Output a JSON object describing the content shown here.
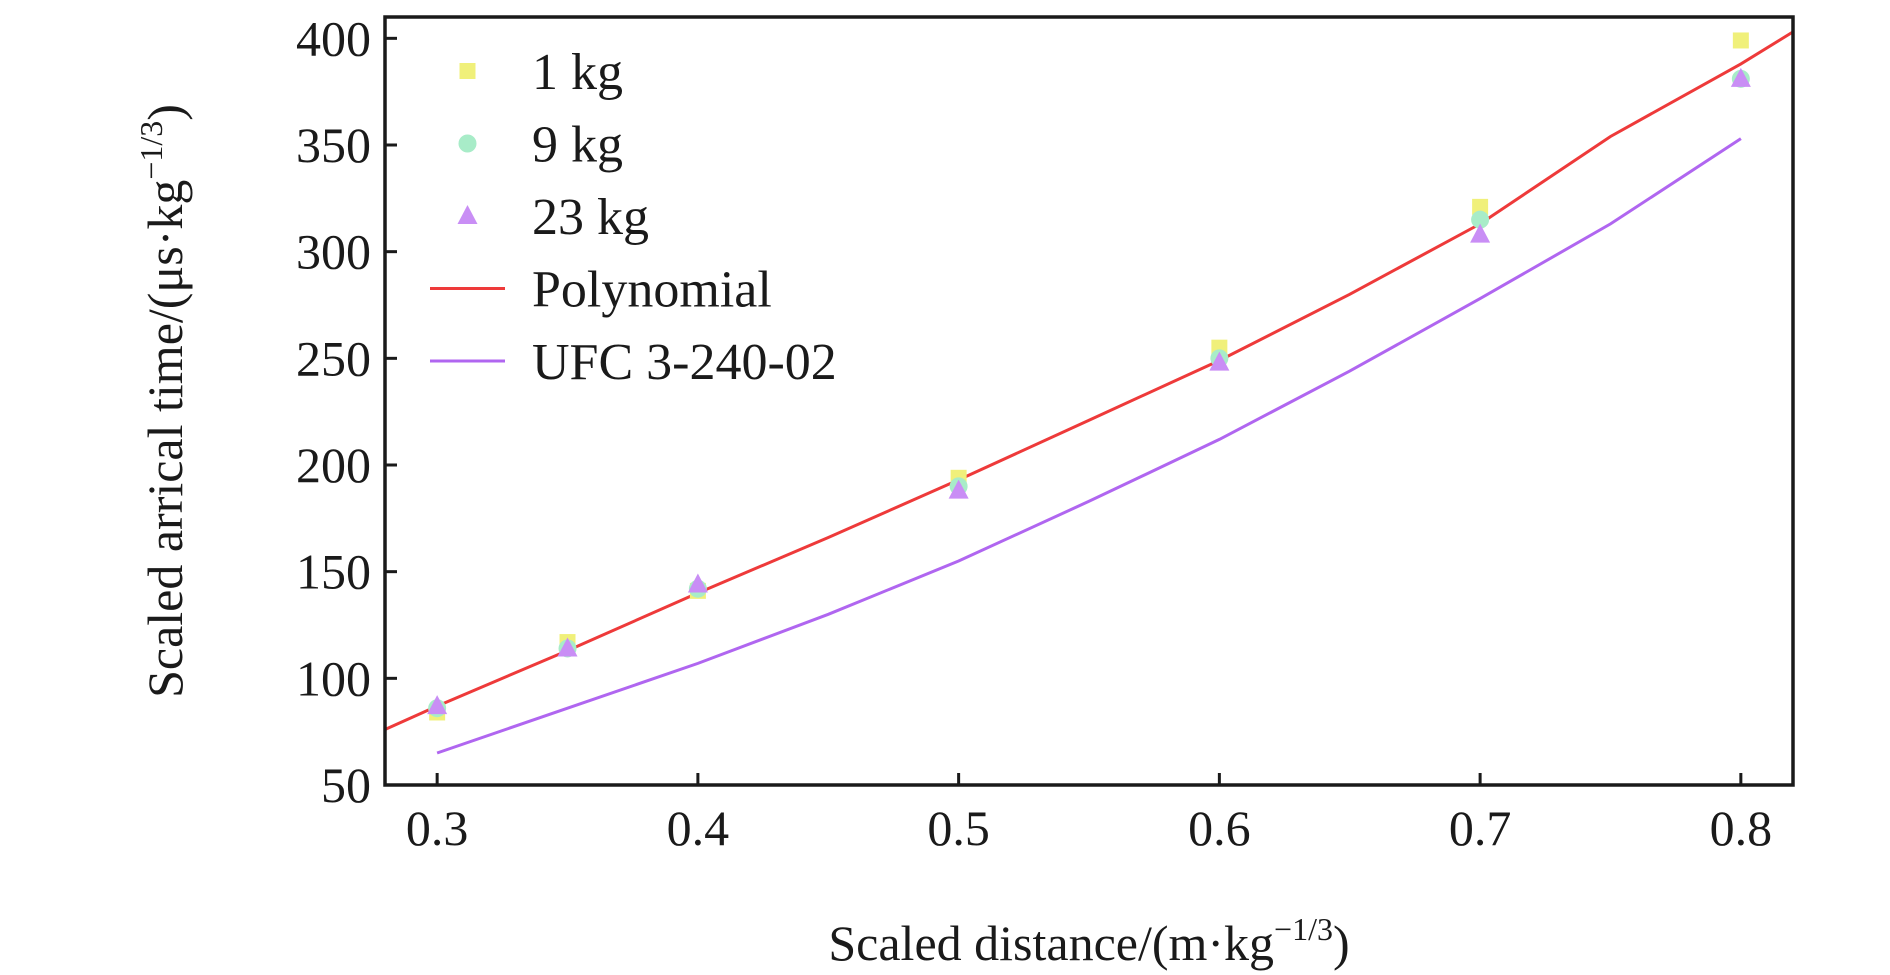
{
  "chart_data": {
    "type": "scatter",
    "title": "",
    "xlabel_main": "Scaled distance/(m·kg",
    "xlabel_sup": "−1/3",
    "xlabel_end": ")",
    "ylabel_main": "Scaled arrical time/(μs·kg",
    "ylabel_sup": "−1/3",
    "ylabel_end": ")",
    "xlim": [
      0.28,
      0.82
    ],
    "ylim": [
      50,
      410
    ],
    "x_ticks": [
      0.3,
      0.4,
      0.5,
      0.6,
      0.7,
      0.8
    ],
    "x_tick_labels": [
      "0.3",
      "0.4",
      "0.5",
      "0.6",
      "0.7",
      "0.8"
    ],
    "y_ticks": [
      50,
      100,
      150,
      200,
      250,
      300,
      350,
      400
    ],
    "y_tick_labels": [
      "50",
      "100",
      "150",
      "200",
      "250",
      "300",
      "350",
      "400"
    ],
    "legend_position": "top-left",
    "series": [
      {
        "name": "1 kg",
        "kind": "points",
        "marker": "square",
        "color": "#f0f07a",
        "x": [
          0.3,
          0.35,
          0.4,
          0.5,
          0.6,
          0.7,
          0.8
        ],
        "y": [
          84,
          117,
          141,
          194,
          255,
          321,
          399
        ]
      },
      {
        "name": "9 kg",
        "kind": "points",
        "marker": "circle",
        "color": "#a8ecc8",
        "x": [
          0.3,
          0.35,
          0.4,
          0.5,
          0.6,
          0.7,
          0.8
        ],
        "y": [
          86,
          114,
          142,
          190,
          250,
          315,
          381
        ]
      },
      {
        "name": "23 kg",
        "kind": "points",
        "marker": "triangle",
        "color": "#c98ef5",
        "x": [
          0.3,
          0.35,
          0.4,
          0.5,
          0.6,
          0.7,
          0.8
        ],
        "y": [
          87,
          114,
          144,
          188,
          248,
          308,
          381
        ]
      },
      {
        "name": "Polynomial",
        "kind": "line",
        "color": "#ee3a3a",
        "x": [
          0.28,
          0.3,
          0.35,
          0.4,
          0.45,
          0.5,
          0.55,
          0.6,
          0.65,
          0.7,
          0.75,
          0.8,
          0.82
        ],
        "y": [
          76,
          87,
          113,
          140,
          166,
          193,
          221,
          249,
          280,
          313,
          354,
          388,
          403
        ]
      },
      {
        "name": "UFC 3-240-02",
        "kind": "line",
        "color": "#b066f0",
        "x": [
          0.3,
          0.35,
          0.4,
          0.45,
          0.5,
          0.55,
          0.6,
          0.65,
          0.7,
          0.75,
          0.8
        ],
        "y": [
          65,
          86,
          107,
          130,
          155,
          183,
          212,
          244,
          278,
          313,
          353
        ]
      }
    ]
  }
}
